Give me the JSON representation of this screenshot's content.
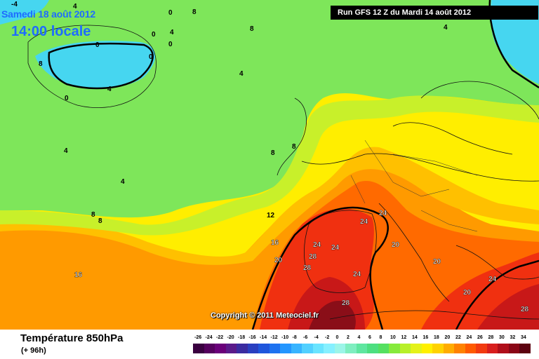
{
  "header": {
    "date": "Samedi 18 août 2012",
    "time": "14:00 locale",
    "run": "Run GFS 12 Z du Mardi 14 août 2012"
  },
  "copyright": "Copyright © 2011 Meteociel.fr",
  "legend": {
    "title": "Température 850hPa",
    "forecast_offset": "(+ 96h)",
    "scale_values": [
      "-26",
      "-24",
      "-22",
      "-20",
      "-18",
      "-16",
      "-14",
      "-12",
      "-10",
      "-8",
      "-6",
      "-4",
      "-2",
      "0",
      "2",
      "4",
      "6",
      "8",
      "10",
      "12",
      "14",
      "16",
      "18",
      "20",
      "22",
      "24",
      "26",
      "28",
      "30",
      "32",
      "34"
    ],
    "scale_colors": [
      "#3a0040",
      "#55005e",
      "#6a007a",
      "#5a1a8a",
      "#3b2ba0",
      "#2a3fc0",
      "#1f56dc",
      "#1e72f0",
      "#2496ff",
      "#38b4ff",
      "#52d0ff",
      "#6ae4ff",
      "#86f0ff",
      "#9cf5e8",
      "#7feec0",
      "#5fe6a0",
      "#4ddf80",
      "#55e060",
      "#86ea3c",
      "#b8f02a",
      "#e4f21a",
      "#fff000",
      "#ffd200",
      "#ffac00",
      "#ff8200",
      "#ff5a00",
      "#f23a10",
      "#d81e1e",
      "#b00e1a",
      "#8a0616",
      "#5c0210"
    ]
  },
  "map": {
    "contour_labels": [
      "-4",
      "0",
      "0",
      "0",
      "0",
      "0",
      "0",
      "0",
      "4",
      "4",
      "4",
      "4",
      "4",
      "4",
      "4",
      "8",
      "8",
      "8",
      "8",
      "8",
      "8",
      "8",
      "8",
      "12",
      "16",
      "16",
      "20",
      "20",
      "20",
      "20",
      "24",
      "24",
      "24",
      "24",
      "24",
      "24",
      "28",
      "28",
      "28",
      "28"
    ],
    "colors": {
      "cold_cyan": "#46d6f0",
      "light_green": "#7ee65a",
      "green": "#5fe070",
      "yellow_green": "#c8f02a",
      "yellow": "#ffee00",
      "gold": "#ffc000",
      "orange": "#ff9a00",
      "dark_orange": "#ff6a00",
      "red": "#f03010",
      "dark_red": "#c81818",
      "maroon": "#8a0e18"
    }
  }
}
